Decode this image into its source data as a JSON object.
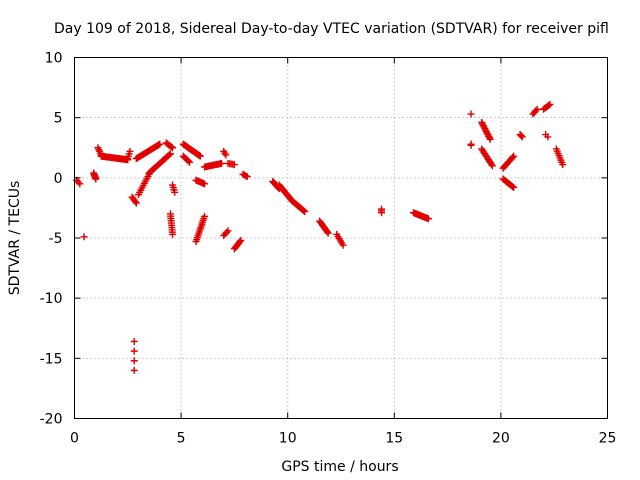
{
  "chart_data": {
    "type": "scatter",
    "title": "Day 109 of 2018, Sidereal Day-to-day VTEC variation (SDTVAR) for receiver pifl",
    "xlabel": "GPS time / hours",
    "ylabel": "SDTVAR / TECUs",
    "xlim": [
      0,
      25
    ],
    "ylim": [
      -20,
      10
    ],
    "xticks": [
      0,
      5,
      10,
      15,
      20,
      25
    ],
    "yticks": [
      -20,
      -15,
      -10,
      -5,
      0,
      5,
      10
    ],
    "xtick_labels": [
      "0",
      "5",
      "10",
      "15",
      "20",
      "25"
    ],
    "ytick_labels": [
      "-20",
      "-15",
      "-10",
      "-5",
      "0",
      "5",
      "10"
    ],
    "grid": true,
    "marker": "plus",
    "marker_color": "#e00000",
    "segments": [
      {
        "x0": 0.1,
        "y0": -0.2,
        "x1": 0.25,
        "y1": -0.5,
        "n": 3
      },
      {
        "x0": 0.45,
        "y0": -4.9,
        "x1": 0.45,
        "y1": -4.9,
        "n": 1
      },
      {
        "x0": 0.9,
        "y0": 0.4,
        "x1": 1.0,
        "y1": -0.1,
        "n": 6
      },
      {
        "x0": 1.1,
        "y0": 2.5,
        "x1": 1.25,
        "y1": 1.9,
        "n": 5
      },
      {
        "x0": 1.25,
        "y0": 1.8,
        "x1": 2.5,
        "y1": 1.5,
        "n": 24
      },
      {
        "x0": 2.5,
        "y0": 1.6,
        "x1": 2.6,
        "y1": 2.2,
        "n": 4
      },
      {
        "x0": 2.7,
        "y0": -1.6,
        "x1": 2.9,
        "y1": -2.1,
        "n": 5
      },
      {
        "x0": 2.8,
        "y0": -13.6,
        "x1": 2.8,
        "y1": -16.0,
        "n": 4
      },
      {
        "x0": 2.9,
        "y0": 1.6,
        "x1": 4.0,
        "y1": 2.8,
        "n": 22
      },
      {
        "x0": 3.0,
        "y0": -1.4,
        "x1": 3.5,
        "y1": 0.3,
        "n": 10
      },
      {
        "x0": 3.5,
        "y0": 0.4,
        "x1": 4.5,
        "y1": 2.0,
        "n": 18
      },
      {
        "x0": 4.3,
        "y0": 2.9,
        "x1": 4.6,
        "y1": 2.5,
        "n": 6
      },
      {
        "x0": 4.6,
        "y0": -0.6,
        "x1": 4.7,
        "y1": -1.2,
        "n": 4
      },
      {
        "x0": 4.5,
        "y0": -3.0,
        "x1": 4.6,
        "y1": -4.7,
        "n": 10
      },
      {
        "x0": 5.1,
        "y0": 2.8,
        "x1": 5.9,
        "y1": 1.8,
        "n": 20
      },
      {
        "x0": 5.1,
        "y0": 1.8,
        "x1": 5.4,
        "y1": 1.3,
        "n": 6
      },
      {
        "x0": 5.7,
        "y0": -0.2,
        "x1": 6.1,
        "y1": -0.5,
        "n": 8
      },
      {
        "x0": 5.7,
        "y0": -5.3,
        "x1": 6.1,
        "y1": -3.2,
        "n": 14
      },
      {
        "x0": 6.1,
        "y0": 0.9,
        "x1": 6.9,
        "y1": 1.2,
        "n": 14
      },
      {
        "x0": 7.0,
        "y0": 2.2,
        "x1": 7.1,
        "y1": 1.9,
        "n": 3
      },
      {
        "x0": 7.0,
        "y0": -4.8,
        "x1": 7.2,
        "y1": -4.4,
        "n": 4
      },
      {
        "x0": 7.2,
        "y0": 1.2,
        "x1": 7.5,
        "y1": 1.1,
        "n": 5
      },
      {
        "x0": 7.5,
        "y0": -5.9,
        "x1": 7.8,
        "y1": -5.2,
        "n": 8
      },
      {
        "x0": 7.9,
        "y0": 0.3,
        "x1": 8.1,
        "y1": 0.1,
        "n": 4
      },
      {
        "x0": 9.3,
        "y0": -0.3,
        "x1": 9.6,
        "y1": -0.9,
        "n": 8
      },
      {
        "x0": 9.6,
        "y0": -0.6,
        "x1": 10.2,
        "y1": -1.9,
        "n": 14
      },
      {
        "x0": 10.2,
        "y0": -1.9,
        "x1": 10.8,
        "y1": -2.8,
        "n": 14
      },
      {
        "x0": 11.5,
        "y0": -3.6,
        "x1": 11.9,
        "y1": -4.6,
        "n": 10
      },
      {
        "x0": 12.3,
        "y0": -4.7,
        "x1": 12.6,
        "y1": -5.6,
        "n": 6
      },
      {
        "x0": 14.4,
        "y0": -2.6,
        "x1": 14.4,
        "y1": -2.9,
        "n": 3
      },
      {
        "x0": 15.9,
        "y0": -2.9,
        "x1": 16.6,
        "y1": -3.4,
        "n": 14
      },
      {
        "x0": 18.6,
        "y0": 5.3,
        "x1": 18.6,
        "y1": 5.3,
        "n": 1
      },
      {
        "x0": 18.6,
        "y0": 2.8,
        "x1": 18.6,
        "y1": 2.7,
        "n": 2
      },
      {
        "x0": 19.1,
        "y0": 4.6,
        "x1": 19.5,
        "y1": 3.2,
        "n": 12
      },
      {
        "x0": 19.1,
        "y0": 2.4,
        "x1": 19.6,
        "y1": 1.0,
        "n": 12
      },
      {
        "x0": 20.1,
        "y0": 0.8,
        "x1": 20.6,
        "y1": 1.8,
        "n": 10
      },
      {
        "x0": 20.1,
        "y0": -0.1,
        "x1": 20.6,
        "y1": -0.8,
        "n": 10
      },
      {
        "x0": 20.9,
        "y0": 3.6,
        "x1": 21.0,
        "y1": 3.4,
        "n": 3
      },
      {
        "x0": 21.5,
        "y0": 5.3,
        "x1": 21.7,
        "y1": 5.7,
        "n": 4
      },
      {
        "x0": 22.0,
        "y0": 5.7,
        "x1": 22.3,
        "y1": 6.1,
        "n": 6
      },
      {
        "x0": 22.1,
        "y0": 3.6,
        "x1": 22.2,
        "y1": 3.4,
        "n": 2
      },
      {
        "x0": 22.6,
        "y0": 2.4,
        "x1": 22.9,
        "y1": 1.1,
        "n": 8
      }
    ]
  }
}
